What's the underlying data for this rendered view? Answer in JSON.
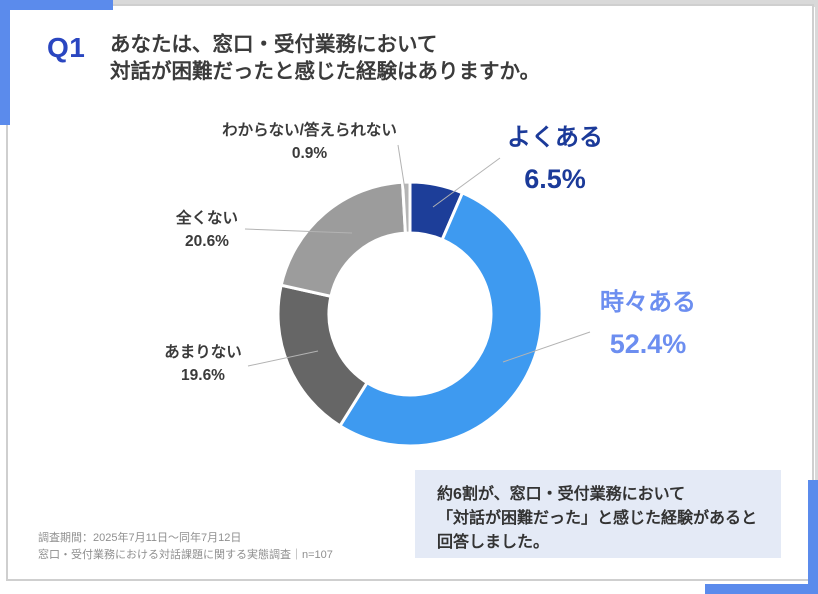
{
  "header": {
    "badge": "Q1",
    "question_line1": "あなたは、窓口・受付業務において",
    "question_line2": "対話が困難だったと感じた経験はありますか。"
  },
  "chart_data": {
    "type": "pie",
    "subtype": "donut",
    "start_angle": "12-o-clock",
    "direction": "clockwise",
    "inner_radius_ratio": 0.61,
    "slices": [
      {
        "label": "よくある",
        "pct": 6.5,
        "pct_text": "6.5%",
        "color": "#1D3E99",
        "label_color": "#1B3A99"
      },
      {
        "label": "時々ある",
        "pct": 52.4,
        "pct_text": "52.4%",
        "color": "#3E9AF0",
        "label_color": "#6C8EF0"
      },
      {
        "label": "あまりない",
        "pct": 19.6,
        "pct_text": "19.6%",
        "color": "#666666",
        "label_color": "#3A3A3A"
      },
      {
        "label": "全くない",
        "pct": 20.6,
        "pct_text": "20.6%",
        "color": "#9C9C9C",
        "label_color": "#3A3A3A"
      },
      {
        "label": "わからない/答えられない",
        "pct": 0.9,
        "pct_text": "0.9%",
        "color": "#B5B5B5",
        "label_color": "#3A3A3A"
      }
    ]
  },
  "annotation": {
    "line1": "約6割が、窓口・受付業務において",
    "line2": "「対話が困難だった」と感じた経験があると",
    "line3": "回答しました。"
  },
  "source": {
    "line1": "調査期間：2025年7月11日〜同年7月12日",
    "line2": "窓口・受付業務における対話課題に関する実態調査｜n=107"
  },
  "colors": {
    "accent_blue": "#5B8BEC",
    "frame_gray": "#D9D9D9",
    "card_border": "#CFCFCF",
    "annotation_bg": "#E4EAF6",
    "leader_line": "#B3B3B3",
    "question_text": "#3B3B3B",
    "q_badge": "#2A46C0"
  }
}
